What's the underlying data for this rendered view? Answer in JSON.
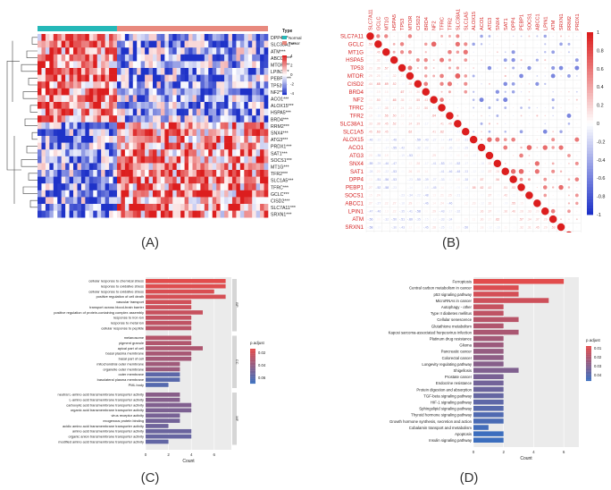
{
  "labels": {
    "a": "(A)",
    "b": "(B)",
    "c": "(C)",
    "d": "(D)"
  },
  "heatmap": {
    "legend_title": "Type",
    "legend_items": [
      {
        "name": "Normal",
        "color": "#25b8b8"
      },
      {
        "name": "Tumor",
        "color": "#e8897e"
      }
    ],
    "colorbar_ticks": [
      "4",
      "2",
      "0",
      "-2",
      "-4"
    ],
    "genes": [
      "DPP4***",
      "SLC38A1***",
      "ATM***",
      "ABCC1***",
      "MTOR***",
      "LPIN1***",
      "PEBP1***",
      "TP53***",
      "NF2***",
      "ACO1***",
      "ALOX15***",
      "HSPA5***",
      "BRD4***",
      "RRM2***",
      "SNX4***",
      "ATG3***",
      "PRDX1***",
      "SAT1***",
      "SOCS1***",
      "MT1G***",
      "TFR2***",
      "SLC1A5***",
      "TFRC***",
      "GCLC***",
      "CISD2***",
      "SLC7A11***",
      "SRXN1***"
    ]
  },
  "correlation": {
    "genes": [
      "SLC7A11",
      "GCLC",
      "MT1G",
      "HSPA5",
      "TP53",
      "MTOR",
      "CISD2",
      "BRD4",
      "NF2",
      "TFRC",
      "TFR2",
      "SLC38A1",
      "SLC1A5",
      "ALOX15",
      "ACO1",
      "ATG3",
      "SNX4",
      "SAT1",
      "DPP4",
      "PEBP1",
      "SOCS1",
      "ABCC1",
      "LPIN1",
      "ATM",
      "SRXN1",
      "RRM2",
      "PRDX1"
    ],
    "colorbar_ticks": [
      "1",
      "0.8",
      "0.6",
      "0.4",
      "0.2",
      "0",
      "-0.2",
      "-0.4",
      "-0.6",
      "-0.8",
      "-1"
    ]
  },
  "chart_data": [
    {
      "type": "bar",
      "title": "",
      "xlabel": "Count",
      "xticks": [
        "0",
        "2",
        "4",
        "6"
      ],
      "xlim": [
        0,
        7.5
      ],
      "legend_title": "p.adjust",
      "legend_ticks": [
        "0.02",
        "0.04",
        "0.06"
      ],
      "groups": [
        {
          "name": "BP",
          "categories": [
            "cellular response to chemical stress",
            "response to oxidative stress",
            "cellular response to oxidative stress",
            "positive regulation of cell death",
            "vascular transport",
            "transport across blood-brain barrier",
            "positive regulation of protein-containing complex assembly",
            "response to iron ion",
            "response to metal ion",
            "cellular response to peptide"
          ],
          "values": [
            7,
            7,
            6,
            7,
            4,
            4,
            5,
            4,
            4,
            4
          ]
        },
        {
          "name": "CC",
          "categories": [
            "melanosome",
            "pigment granule",
            "apical part of cell",
            "basal plasma membrane",
            "basal part of cell",
            "mitochondrial outer membrane",
            "organelle outer membrane",
            "outer membrane",
            "basolateral plasma membrane",
            "PML body"
          ],
          "values": [
            4,
            4,
            5,
            4,
            4,
            3,
            3,
            3,
            3,
            2
          ]
        },
        {
          "name": "MF",
          "categories": [
            "neutral L-amino acid transmembrane transporter activity",
            "L-amino acid transmembrane transporter activity",
            "carboxylic acid transmembrane transporter activity",
            "organic acid transmembrane transporter activity",
            "virus receptor activity",
            "exogenous protein binding",
            "acidic amino acid transmembrane transporter activity",
            "amino acid transmembrane transporter activity",
            "organic anion transmembrane transporter activity",
            "modified amino acid transmembrane transporter activity"
          ],
          "values": [
            3,
            3,
            4,
            4,
            3,
            3,
            2,
            4,
            4,
            2
          ]
        }
      ]
    },
    {
      "type": "bar",
      "title": "",
      "xlabel": "Count",
      "xticks": [
        "0",
        "2",
        "4",
        "6"
      ],
      "xlim": [
        0,
        7
      ],
      "legend_title": "p.adjust",
      "legend_ticks": [
        "0.01",
        "0.02",
        "0.03",
        "0.04"
      ],
      "categories": [
        "Ferroptosis",
        "Central carbon metabolism in cancer",
        "p53 signaling pathway",
        "MicroRNAs in cancer",
        "Autophagy - other",
        "Type II diabetes mellitus",
        "Cellular senescence",
        "Glutathione metabolism",
        "Kaposi sarcoma-associated herpesvirus infection",
        "Platinum drug resistance",
        "Glioma",
        "Pancreatic cancer",
        "Colorectal cancer",
        "Longevity regulating pathway",
        "Shigellosis",
        "Prostate cancer",
        "Endocrine resistance",
        "Protein digestion and absorption",
        "TGF-beta signaling pathway",
        "HIF-1 signaling pathway",
        "Sphingolipid signaling pathway",
        "Thyroid hormone signaling pathway",
        "Growth hormone synthesis, secretion and action",
        "Cobalamin transport and metabolism",
        "Apoptosis",
        "Insulin signaling pathway"
      ],
      "values": [
        6,
        3,
        3,
        5,
        2,
        2,
        3,
        2,
        3,
        2,
        2,
        2,
        2,
        2,
        3,
        2,
        2,
        2,
        2,
        2,
        2,
        2,
        2,
        1,
        2,
        2
      ]
    }
  ]
}
